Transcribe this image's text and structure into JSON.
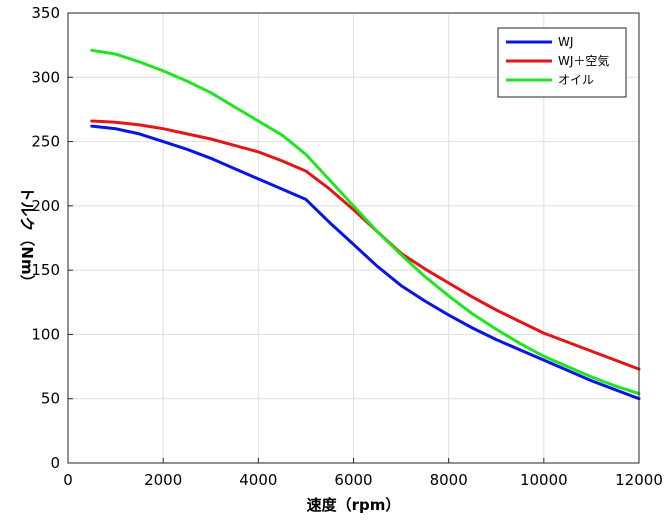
{
  "chart_data": {
    "type": "line",
    "title": "",
    "xlabel": "速度（rpm）",
    "ylabel": "トルク（Nm）",
    "xlim": [
      0,
      12000
    ],
    "ylim": [
      0,
      350
    ],
    "xticks": [
      0,
      2000,
      4000,
      6000,
      8000,
      10000,
      12000
    ],
    "yticks": [
      0,
      50,
      100,
      150,
      200,
      250,
      300,
      350
    ],
    "grid": true,
    "legend_position": "top-right",
    "series": [
      {
        "name": "WJ",
        "color": "#0a14e6",
        "x": [
          500,
          1000,
          1500,
          2000,
          2500,
          3000,
          3500,
          4000,
          4500,
          5000,
          5500,
          6000,
          6500,
          7000,
          7500,
          8000,
          8500,
          9000,
          9500,
          10000,
          10500,
          11000,
          11500,
          12000
        ],
        "y": [
          262,
          260,
          256,
          250,
          244,
          237,
          229,
          221,
          213,
          205,
          187,
          170,
          153,
          138,
          126,
          115,
          105,
          96,
          88,
          80,
          72,
          64,
          57,
          50
        ]
      },
      {
        "name": "WJ＋空気",
        "color": "#e61414",
        "x": [
          500,
          1000,
          1500,
          2000,
          2500,
          3000,
          3500,
          4000,
          4500,
          5000,
          5500,
          6000,
          6500,
          7000,
          7500,
          8000,
          8500,
          9000,
          9500,
          10000,
          10500,
          11000,
          11500,
          12000
        ],
        "y": [
          266,
          265,
          263,
          260,
          256,
          252,
          247,
          242,
          235,
          227,
          213,
          197,
          180,
          163,
          151,
          140,
          129,
          119,
          110,
          101,
          94,
          87,
          80,
          73
        ]
      },
      {
        "name": "オイル",
        "color": "#1ee61e",
        "x": [
          500,
          1000,
          1500,
          2000,
          2500,
          3000,
          3500,
          4000,
          4500,
          5000,
          5500,
          6000,
          6500,
          7000,
          7500,
          8000,
          8500,
          9000,
          9500,
          10000,
          10500,
          11000,
          11500,
          12000
        ],
        "y": [
          321,
          318,
          312,
          305,
          297,
          288,
          277,
          266,
          255,
          240,
          220,
          200,
          180,
          162,
          145,
          130,
          116,
          104,
          93,
          83,
          75,
          67,
          60,
          54
        ]
      }
    ]
  }
}
